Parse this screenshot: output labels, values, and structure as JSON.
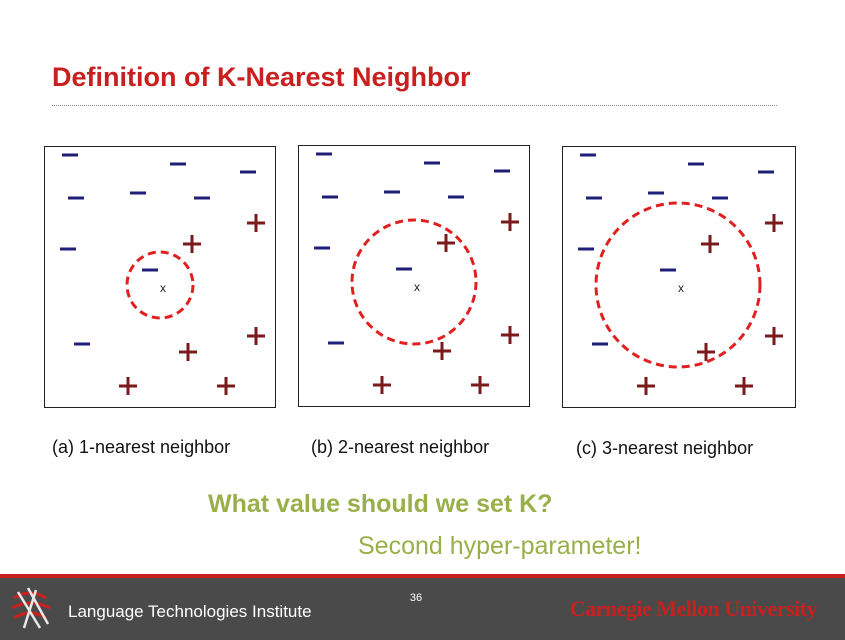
{
  "slide": {
    "title": "Definition of K-Nearest Neighbor",
    "question": "What value should we set K?",
    "subtitle": "Second hyper-parameter!",
    "page_number": "36"
  },
  "panels": [
    {
      "caption": "(a) 1-nearest neighbor",
      "query_label": "x",
      "k": 1
    },
    {
      "caption": "(b) 2-nearest neighbor",
      "query_label": "x",
      "k": 2
    },
    {
      "caption": "(c) 3-nearest neighbor",
      "query_label": "x",
      "k": 3
    }
  ],
  "footer": {
    "institute": "Language Technologies Institute",
    "university": "Carnegie Mellon University"
  },
  "colors": {
    "title": "#c8201e",
    "negative_point": "#1f1f7a",
    "positive_point": "#7a1a1a",
    "neighborhood_circle": "#e02020",
    "highlight_text": "#98b04a",
    "footer_bg": "#4a4a4a"
  }
}
